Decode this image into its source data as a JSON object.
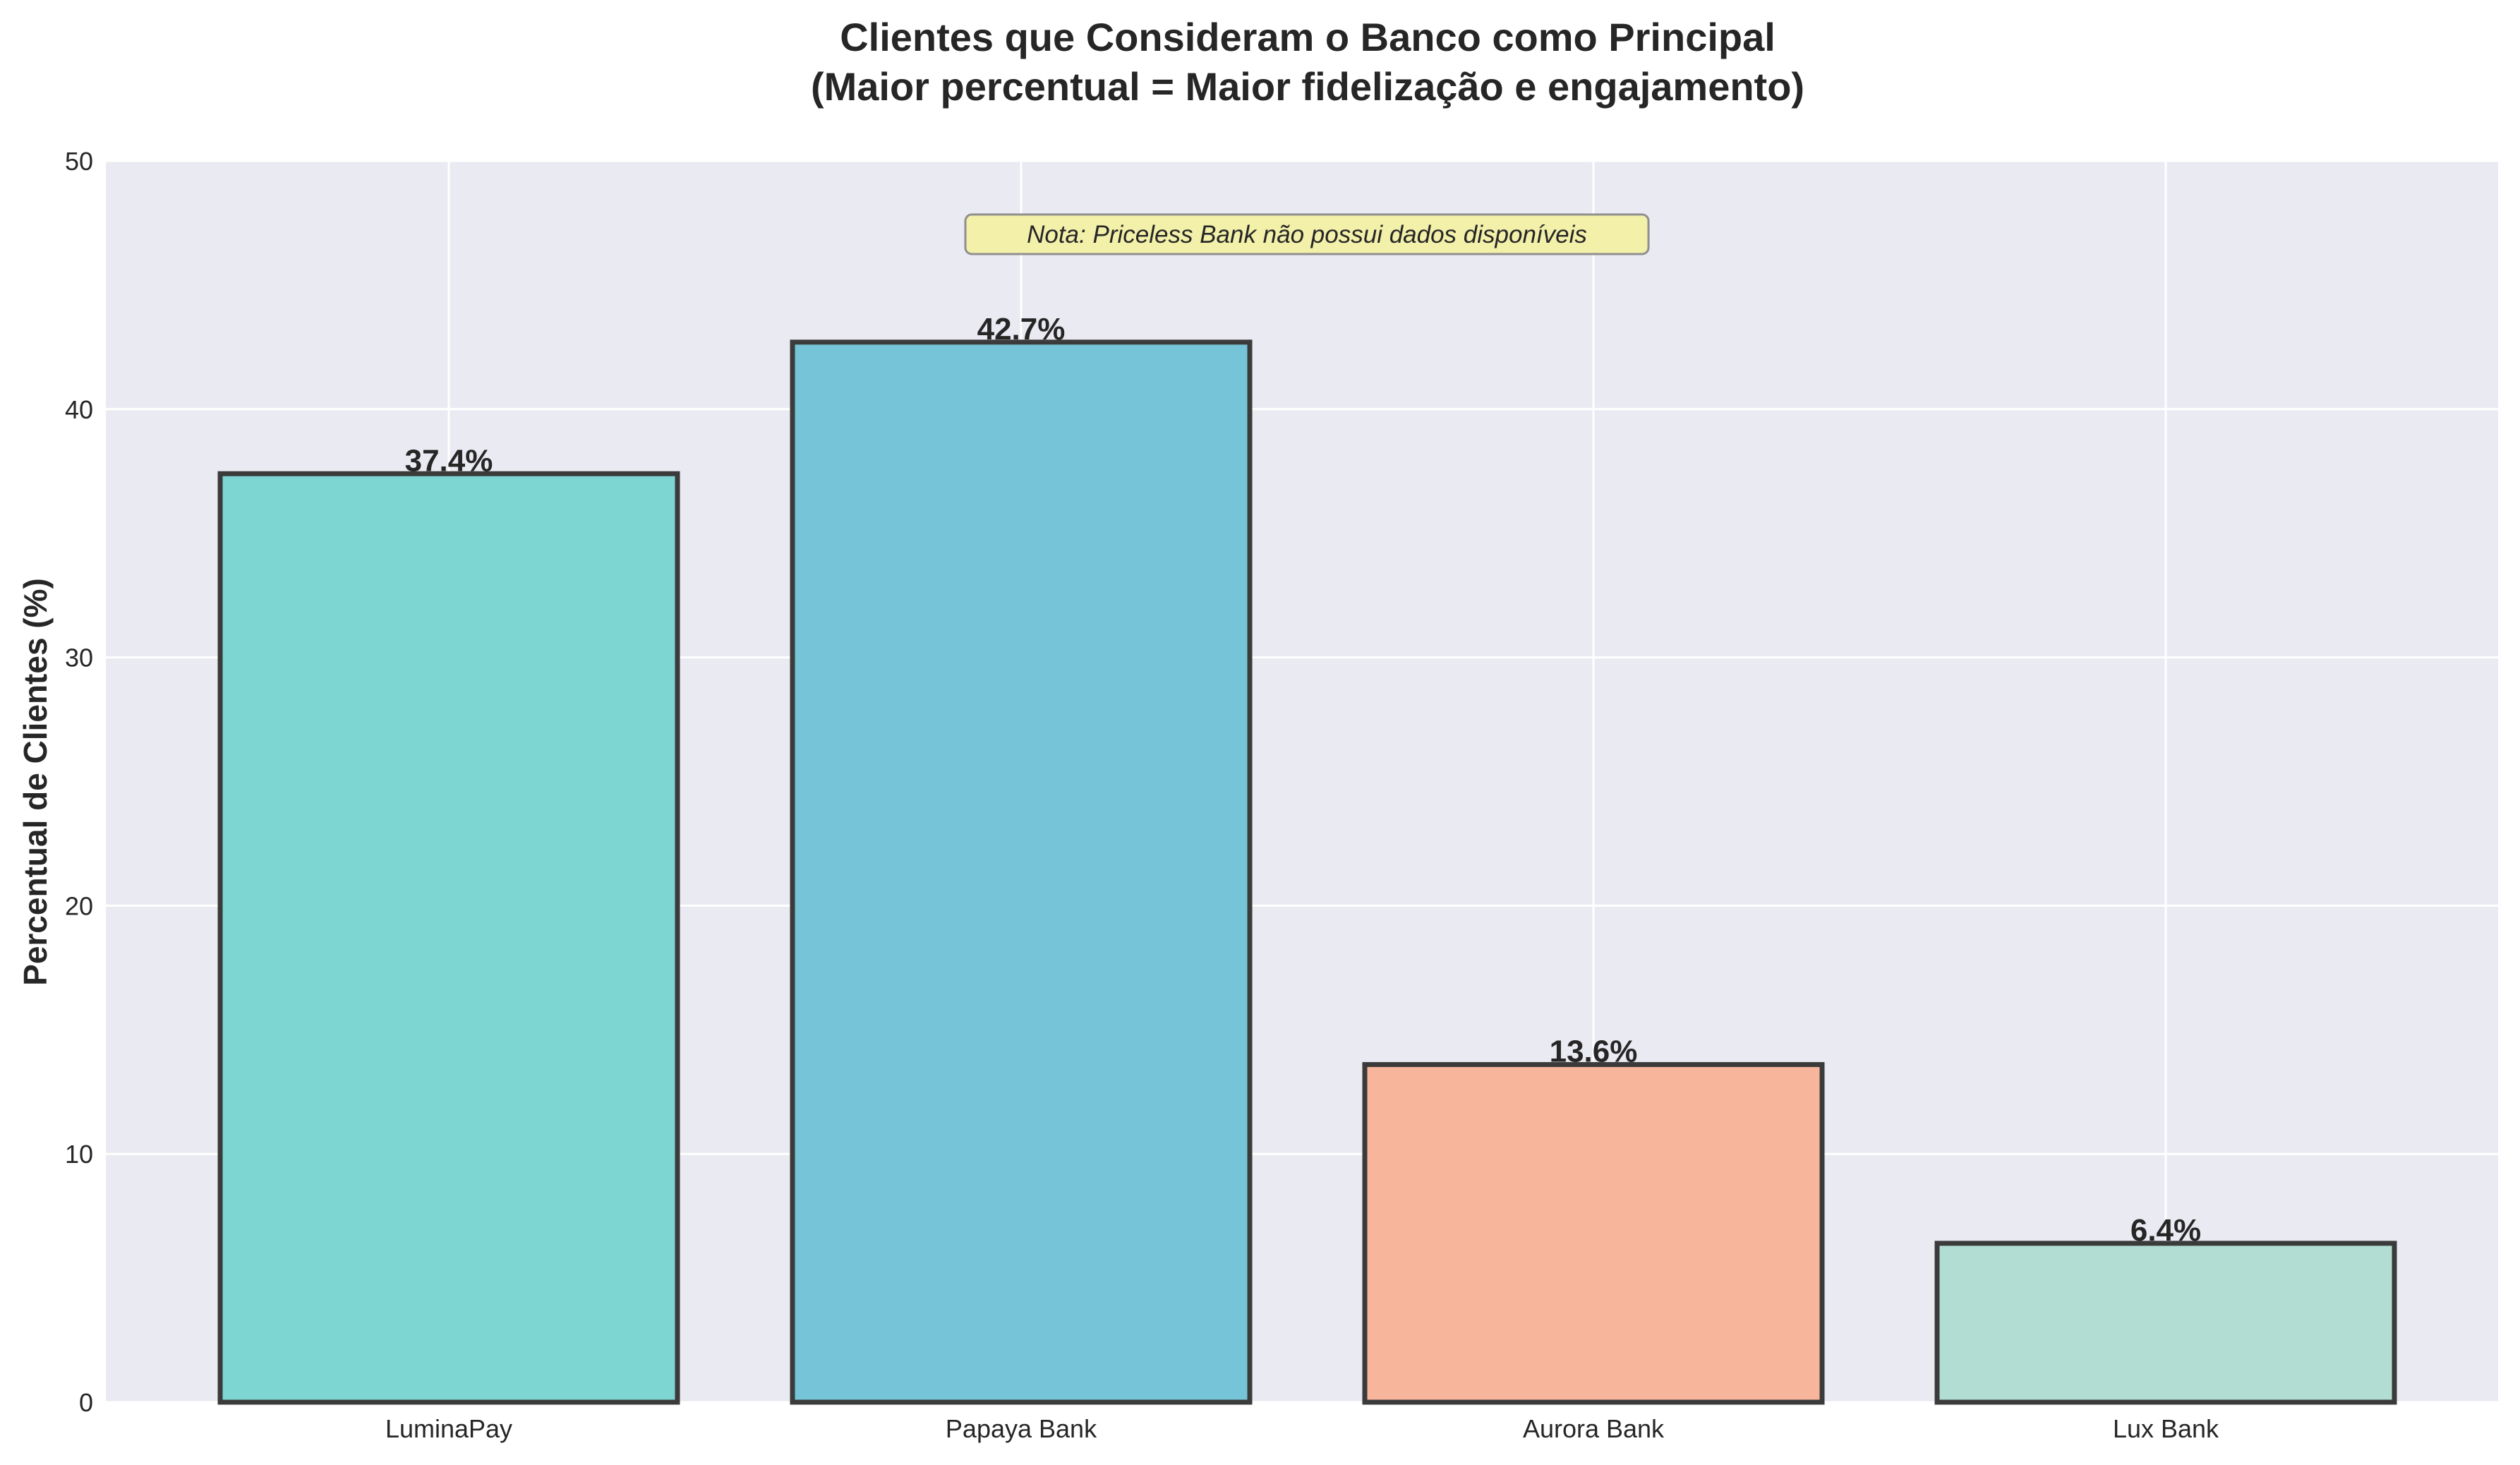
{
  "chart_data": {
    "type": "bar",
    "title_line1": "Clientes que Consideram o Banco como Principal",
    "title_line2": "(Maior percentual = Maior fidelização e engajamento)",
    "xlabel": "",
    "ylabel": "Percentual de Clientes (%)",
    "categories": [
      "LuminaPay",
      "Papaya Bank",
      "Aurora Bank",
      "Lux Bank"
    ],
    "values": [
      37.4,
      42.7,
      13.6,
      6.4
    ],
    "value_labels": [
      "37.4%",
      "42.7%",
      "13.6%",
      "6.4%"
    ],
    "colors": [
      "#7DD6D2",
      "#75C4D7",
      "#F7B59C",
      "#B1DDD3"
    ],
    "ylim": [
      0,
      50
    ],
    "yticks": [
      0,
      10,
      20,
      30,
      40,
      50
    ],
    "grid": true,
    "background_color": "#EAEAF2",
    "annotation": "Nota: Priceless Bank não possui dados disponíveis"
  }
}
